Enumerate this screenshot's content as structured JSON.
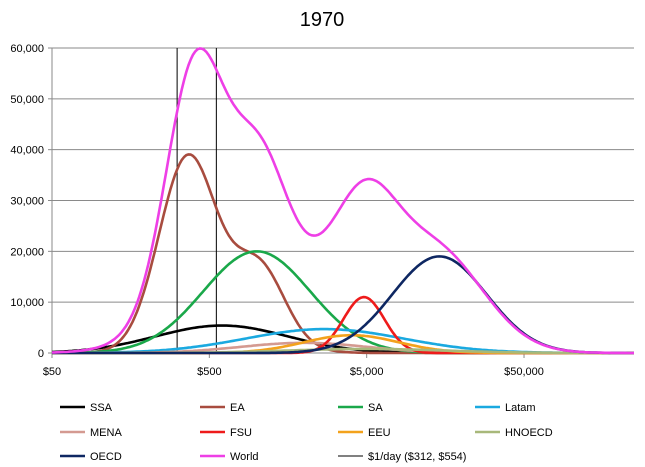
{
  "chart_data": {
    "type": "line",
    "title": "1970",
    "xlabel": "",
    "ylabel": "",
    "x_scale": "log",
    "xlim": [
      50,
      250000
    ],
    "ylim": [
      0,
      60000
    ],
    "yticks": [
      0,
      10000,
      20000,
      30000,
      40000,
      50000,
      60000
    ],
    "ytick_labels": [
      "0",
      "10,000",
      "20,000",
      "30,000",
      "40,000",
      "50,000",
      "60,000"
    ],
    "xticks": [
      50,
      500,
      5000,
      50000
    ],
    "xtick_labels": [
      "$50",
      "$500",
      "$5,000",
      "$50,000"
    ],
    "grid": "horizontal",
    "legend_position": "bottom",
    "vlines": {
      "name": "$1/day ($312, $554)",
      "color": "#000000",
      "values": [
        312,
        554
      ]
    },
    "series": [
      {
        "name": "SSA",
        "color": "#000000",
        "components": [
          [
            600,
            0.42,
            5400
          ]
        ]
      },
      {
        "name": "EA",
        "color": "#a84c3f",
        "components": [
          [
            360,
            0.18,
            35500
          ],
          [
            1050,
            0.16,
            13500
          ],
          [
            650,
            0.28,
            5000
          ]
        ]
      },
      {
        "name": "SA",
        "color": "#1aa84a",
        "components": [
          [
            1000,
            0.34,
            20000
          ]
        ]
      },
      {
        "name": "Latam",
        "color": "#1aa9e0",
        "components": [
          [
            2700,
            0.5,
            4700
          ]
        ]
      },
      {
        "name": "MENA",
        "color": "#d49a91",
        "components": [
          [
            2000,
            0.4,
            2000
          ]
        ]
      },
      {
        "name": "FSU",
        "color": "#ee1b1b",
        "components": [
          [
            4800,
            0.13,
            11000
          ]
        ]
      },
      {
        "name": "EEU",
        "color": "#f3a21c",
        "components": [
          [
            4000,
            0.3,
            3500
          ]
        ]
      },
      {
        "name": "HNOECD",
        "color": "#a8b87a",
        "components": [
          [
            5000,
            0.5,
            800
          ]
        ]
      },
      {
        "name": "OECD",
        "color": "#0e2762",
        "components": [
          [
            14500,
            0.3,
            19000
          ]
        ]
      },
      {
        "name": "World",
        "color": "#ee3fe6",
        "components": [
          [
            400,
            0.18,
            43000
          ],
          [
            1050,
            0.17,
            19000
          ],
          [
            700,
            0.35,
            16000
          ],
          [
            4800,
            0.2,
            20000
          ],
          [
            14000,
            0.3,
            18000
          ],
          [
            2500,
            0.5,
            9000
          ]
        ]
      }
    ]
  }
}
